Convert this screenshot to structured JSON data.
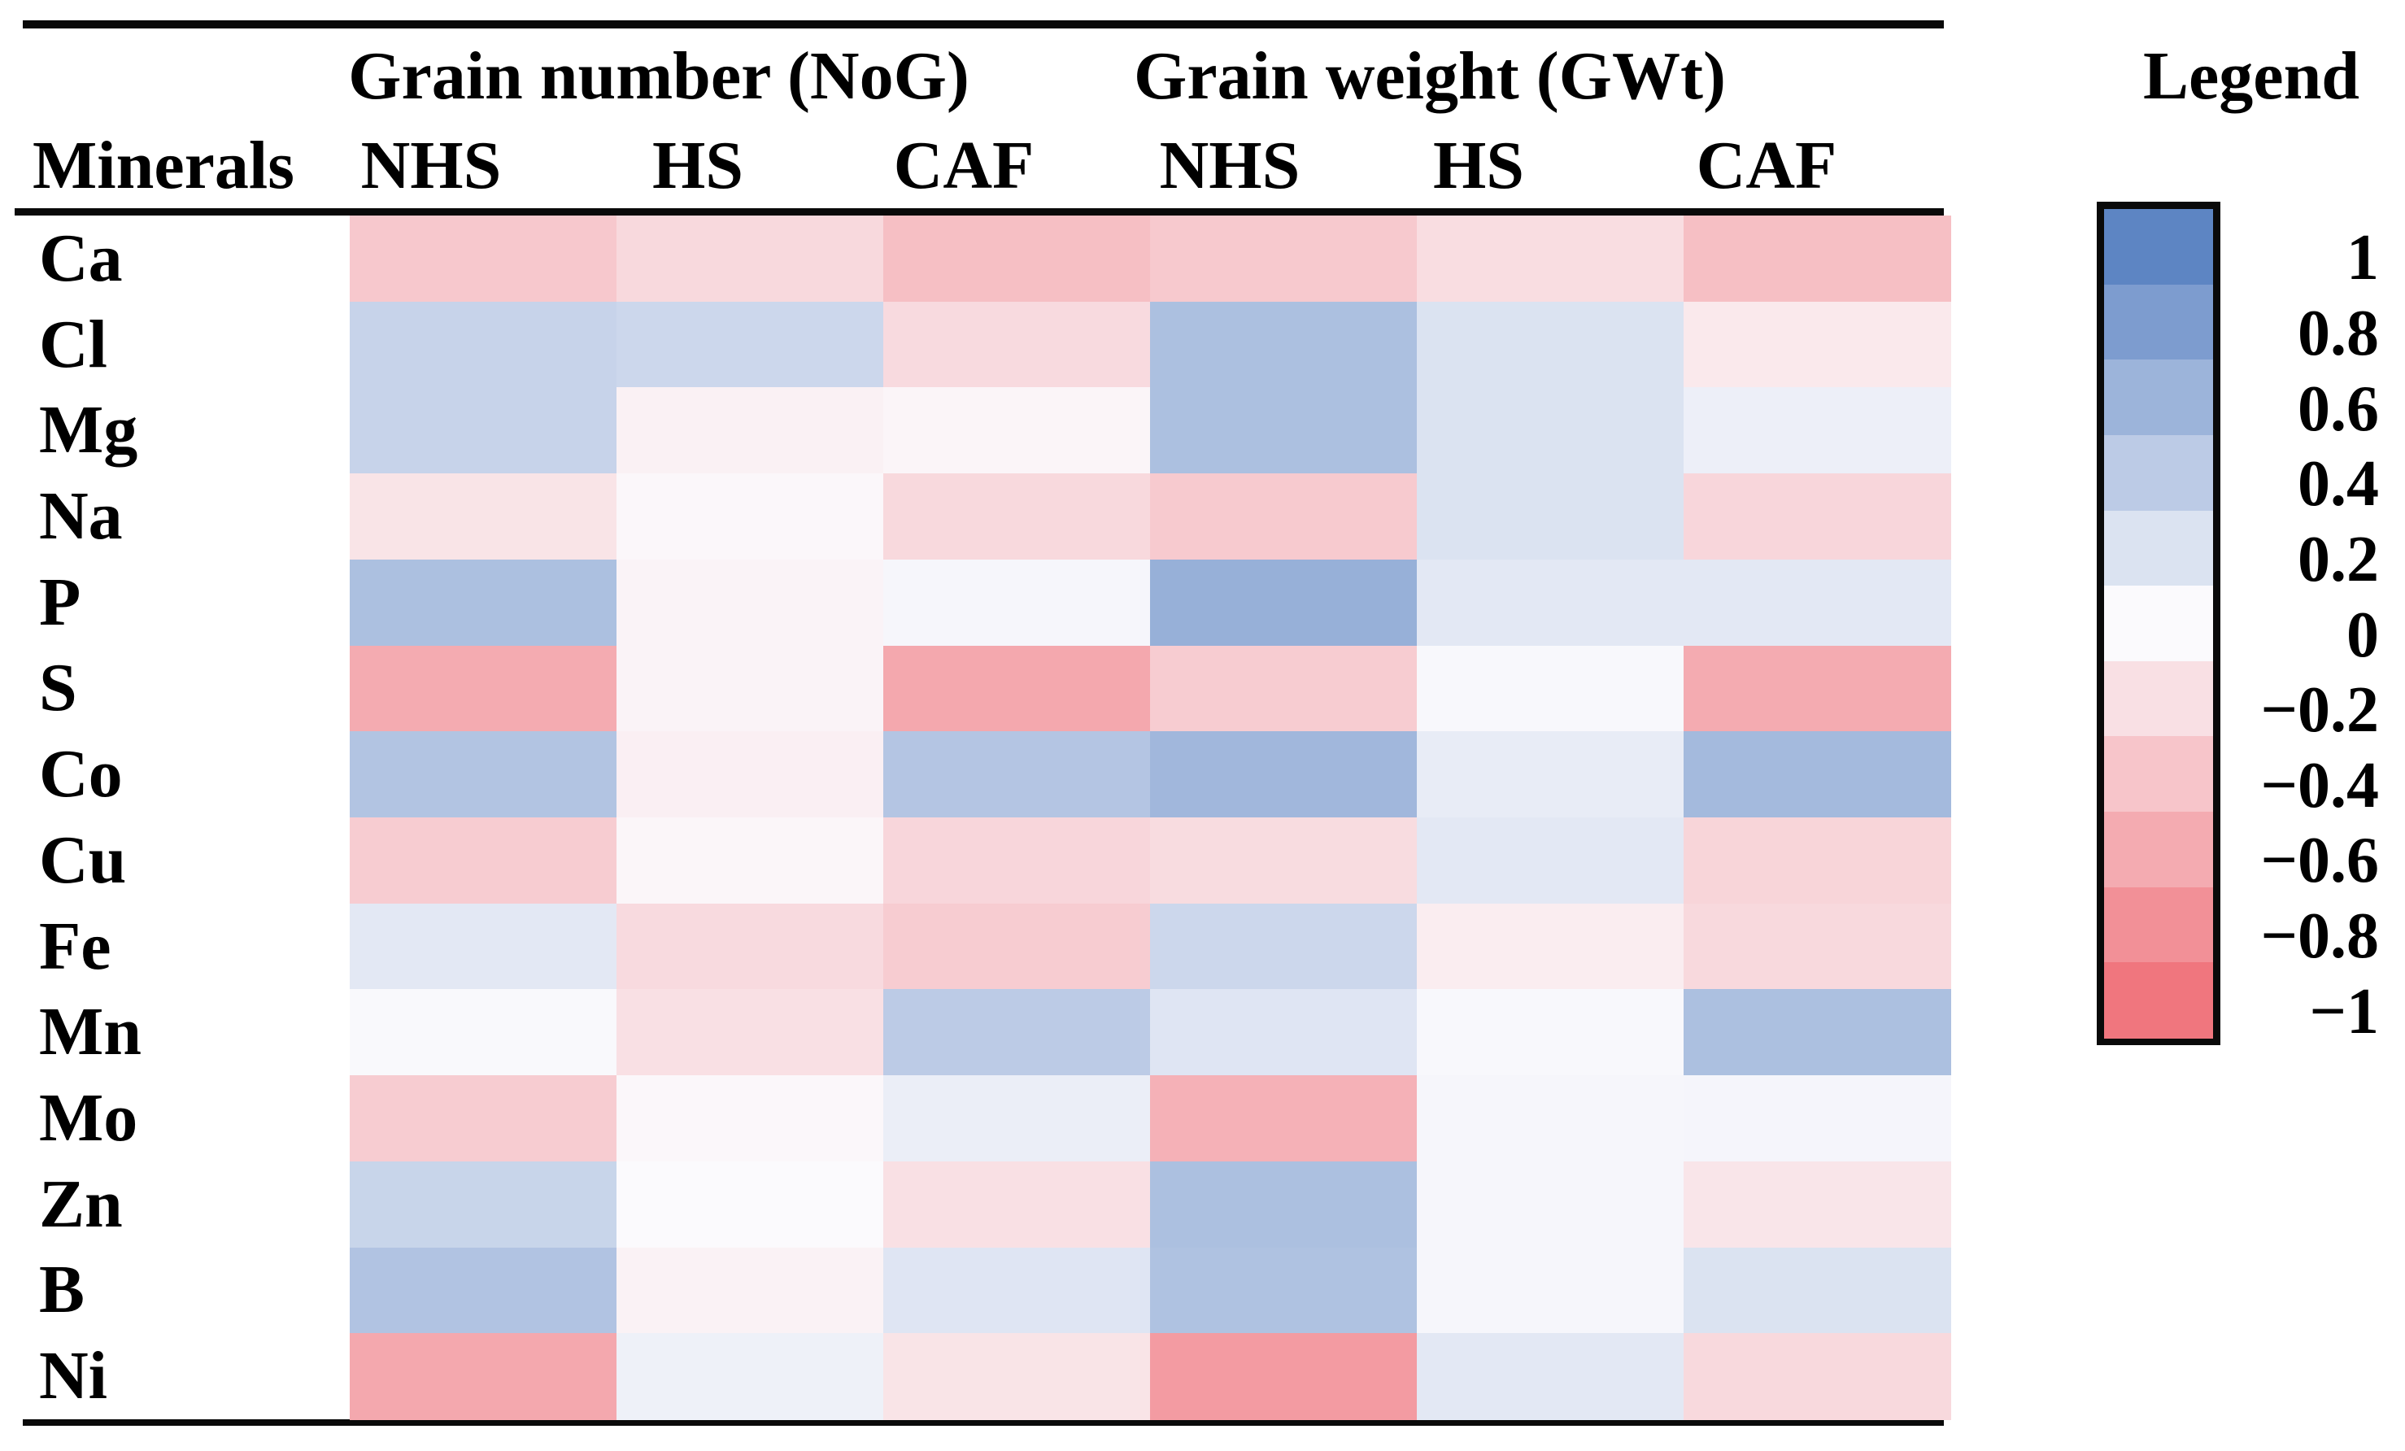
{
  "figure": {
    "col_group_1": "Grain number (NoG)",
    "col_group_2": "Grain weight (GWt)",
    "legend_title": "Legend",
    "row_header": "Minerals",
    "sub_headers": [
      "NHS",
      "HS",
      "CAF",
      "NHS",
      "HS",
      "CAF"
    ]
  },
  "chart_data": {
    "type": "heatmap",
    "row_label_header": "Minerals",
    "column_groups": [
      {
        "label": "Grain number (NoG)",
        "columns": [
          "NHS",
          "HS",
          "CAF"
        ]
      },
      {
        "label": "Grain weight (GWt)",
        "columns": [
          "NHS",
          "HS",
          "CAF"
        ]
      }
    ],
    "rows": [
      "Ca",
      "Cl",
      "Mg",
      "Na",
      "P",
      "S",
      "Co",
      "Cu",
      "Fe",
      "Mn",
      "Mo",
      "Zn",
      "B",
      "Ni"
    ],
    "values": [
      [
        -0.38,
        -0.25,
        -0.45,
        -0.37,
        -0.22,
        -0.45
      ],
      [
        0.33,
        0.3,
        -0.24,
        0.5,
        0.2,
        -0.13
      ],
      [
        0.33,
        -0.07,
        -0.04,
        0.5,
        0.2,
        0.09
      ],
      [
        -0.17,
        -0.02,
        -0.25,
        -0.36,
        0.2,
        -0.27
      ],
      [
        0.5,
        -0.05,
        0.03,
        0.63,
        0.15,
        0.15
      ],
      [
        -0.6,
        -0.05,
        -0.62,
        -0.35,
        0.02,
        -0.6
      ],
      [
        0.46,
        -0.08,
        0.45,
        0.57,
        0.12,
        0.55
      ],
      [
        -0.35,
        -0.03,
        -0.27,
        -0.23,
        0.15,
        -0.28
      ],
      [
        0.15,
        -0.24,
        -0.35,
        0.3,
        -0.1,
        -0.25
      ],
      [
        0.01,
        -0.2,
        0.4,
        0.18,
        0.02,
        0.5
      ],
      [
        -0.35,
        -0.02,
        0.1,
        -0.55,
        0.03,
        0.04
      ],
      [
        0.32,
        0.0,
        -0.2,
        0.5,
        0.03,
        -0.16
      ],
      [
        0.47,
        -0.06,
        0.18,
        0.48,
        0.03,
        0.2
      ],
      [
        -0.62,
        0.08,
        -0.17,
        -0.72,
        0.15,
        -0.25
      ]
    ],
    "value_range": [
      -1,
      1
    ],
    "legend": {
      "title": "Legend",
      "ticks": [
        1,
        0.8,
        0.6,
        0.4,
        0.2,
        0,
        -0.2,
        -0.4,
        -0.6,
        -0.8,
        -1
      ],
      "tick_labels": [
        "1",
        "0.8",
        "0.6",
        "0.4",
        "0.2",
        "0",
        "−0.2",
        "−0.4",
        "−0.6",
        "−0.8",
        "−1"
      ]
    },
    "colors": {
      "positive_max": "#5d85c3",
      "zero": "#fbfafd",
      "negative_max": "#f0767e",
      "rule": "#0a0a0a",
      "text": "#000000"
    }
  }
}
